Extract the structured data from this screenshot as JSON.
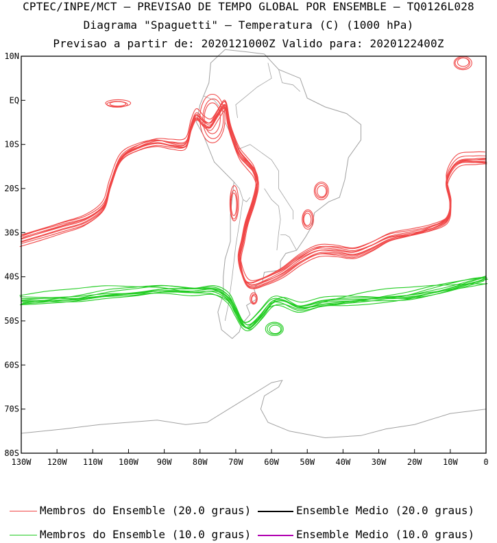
{
  "header": {
    "line1": "CPTEC/INPE/MCT – PREVISAO DE TEMPO GLOBAL POR ENSEMBLE – TQ0126L028",
    "line2": "Diagrama \"Spaguetti\" – Temperatura (C) (1000 hPa)",
    "line3": "Previsao a partir de: 2020121000Z  Valido para: 2020122400Z"
  },
  "legend": {
    "members_20": "Membros do Ensemble (20.0 graus)",
    "mean_20": "Ensemble Medio (20.0 graus)",
    "members_10": "Membros do Ensemble (10.0 graus)",
    "mean_10": "Ensemble Medio (10.0 graus)"
  },
  "colors": {
    "members_20": "#f04646",
    "members_10": "#22cc22",
    "mean_20": "#000000",
    "mean_10": "#b000b0",
    "coast": "#a0a0a0",
    "frame": "#000000"
  },
  "chart_data": {
    "type": "line",
    "title": "Diagrama \"Spaguetti\" – Temperatura (C) (1000 hPa)",
    "xlim": [
      -130,
      0
    ],
    "ylim": [
      -80,
      10
    ],
    "x_ticks": [
      {
        "v": -130,
        "label": "130W"
      },
      {
        "v": -120,
        "label": "120W"
      },
      {
        "v": -110,
        "label": "110W"
      },
      {
        "v": -100,
        "label": "100W"
      },
      {
        "v": -90,
        "label": "90W"
      },
      {
        "v": -80,
        "label": "80W"
      },
      {
        "v": -70,
        "label": "70W"
      },
      {
        "v": -60,
        "label": "60W"
      },
      {
        "v": -50,
        "label": "50W"
      },
      {
        "v": -40,
        "label": "40W"
      },
      {
        "v": -30,
        "label": "30W"
      },
      {
        "v": -20,
        "label": "20W"
      },
      {
        "v": -10,
        "label": "10W"
      },
      {
        "v": 0,
        "label": "0"
      }
    ],
    "y_ticks": [
      {
        "v": 10,
        "label": "10N"
      },
      {
        "v": 0,
        "label": "EQ"
      },
      {
        "v": -10,
        "label": "10S"
      },
      {
        "v": -20,
        "label": "20S"
      },
      {
        "v": -30,
        "label": "30S"
      },
      {
        "v": -40,
        "label": "40S"
      },
      {
        "v": -50,
        "label": "50S"
      },
      {
        "v": -60,
        "label": "60S"
      },
      {
        "v": -70,
        "label": "70S"
      },
      {
        "v": -80,
        "label": "80S"
      }
    ],
    "series": [
      {
        "name": "Membros do Ensemble (20.0 graus)",
        "color": "#f04646",
        "base_isoline": [
          [
            -130,
            -31.5
          ],
          [
            -124,
            -30
          ],
          [
            -118,
            -28.5
          ],
          [
            -112,
            -27
          ],
          [
            -107,
            -24
          ],
          [
            -105,
            -19
          ],
          [
            -102,
            -13
          ],
          [
            -97,
            -10.5
          ],
          [
            -92,
            -9.5
          ],
          [
            -88,
            -10
          ],
          [
            -84,
            -10
          ],
          [
            -82.5,
            -6
          ],
          [
            -81,
            -3.5
          ],
          [
            -79,
            -5
          ],
          [
            -77,
            -5.5
          ],
          [
            -75,
            -3
          ],
          [
            -73,
            -1
          ],
          [
            -72,
            -5
          ],
          [
            -71,
            -8
          ],
          [
            -69,
            -12
          ],
          [
            -67,
            -14
          ],
          [
            -65,
            -16
          ],
          [
            -64,
            -19
          ],
          [
            -65,
            -23
          ],
          [
            -67,
            -28
          ],
          [
            -68,
            -32
          ],
          [
            -69,
            -36
          ],
          [
            -68,
            -40
          ],
          [
            -66,
            -42
          ],
          [
            -62,
            -41
          ],
          [
            -57,
            -39
          ],
          [
            -52,
            -36
          ],
          [
            -47,
            -34
          ],
          [
            -42,
            -34
          ],
          [
            -37,
            -34.5
          ],
          [
            -32,
            -33
          ],
          [
            -27,
            -31
          ],
          [
            -21,
            -30
          ],
          [
            -16,
            -29
          ],
          [
            -11,
            -27
          ],
          [
            -10,
            -23
          ],
          [
            -11,
            -18
          ],
          [
            -8,
            -14
          ],
          [
            -3,
            -13.5
          ],
          [
            0,
            -13.5
          ]
        ],
        "closed_cells": [
          {
            "lon": -103,
            "lat": -0.8,
            "rx": 3.5,
            "ry": 0.8
          },
          {
            "lon": -76.5,
            "lat": -4,
            "rx": 3.5,
            "ry": 5.5
          },
          {
            "lon": -70.5,
            "lat": -23.5,
            "rx": 1.2,
            "ry": 4
          },
          {
            "lon": -46,
            "lat": -20.5,
            "rx": 2,
            "ry": 2
          },
          {
            "lon": -50,
            "lat": -27,
            "rx": 1.6,
            "ry": 2.2
          },
          {
            "lon": -65,
            "lat": -45,
            "rx": 1,
            "ry": 1.3
          },
          {
            "lon": -6.5,
            "lat": 8.5,
            "rx": 2.5,
            "ry": 1.5
          }
        ],
        "members": 10
      },
      {
        "name": "Membros do Ensemble (10.0 graus)",
        "color": "#22cc22",
        "base_isoline": [
          [
            -130,
            -45.5
          ],
          [
            -122,
            -45
          ],
          [
            -114,
            -44.5
          ],
          [
            -106,
            -43.5
          ],
          [
            -98,
            -43
          ],
          [
            -90,
            -42.5
          ],
          [
            -82,
            -43
          ],
          [
            -76,
            -43
          ],
          [
            -72,
            -45
          ],
          [
            -70,
            -48
          ],
          [
            -68,
            -51
          ],
          [
            -66,
            -51.5
          ],
          [
            -63,
            -49
          ],
          [
            -60,
            -46
          ],
          [
            -57,
            -45.5
          ],
          [
            -52,
            -47
          ],
          [
            -46,
            -46
          ],
          [
            -40,
            -45.5
          ],
          [
            -34,
            -45
          ],
          [
            -28,
            -44.5
          ],
          [
            -22,
            -44
          ],
          [
            -16,
            -43
          ],
          [
            -10,
            -42
          ],
          [
            -4,
            -41
          ],
          [
            0,
            -40.5
          ]
        ],
        "closed_cells": [
          {
            "lon": -59,
            "lat": -52,
            "rx": 2.5,
            "ry": 1.5
          }
        ],
        "members": 10
      },
      {
        "name": "Ensemble Medio (20.0 graus)",
        "color": "#000000",
        "base_isoline": []
      },
      {
        "name": "Ensemble Medio (10.0 graus)",
        "color": "#b000b0",
        "base_isoline": []
      }
    ]
  }
}
